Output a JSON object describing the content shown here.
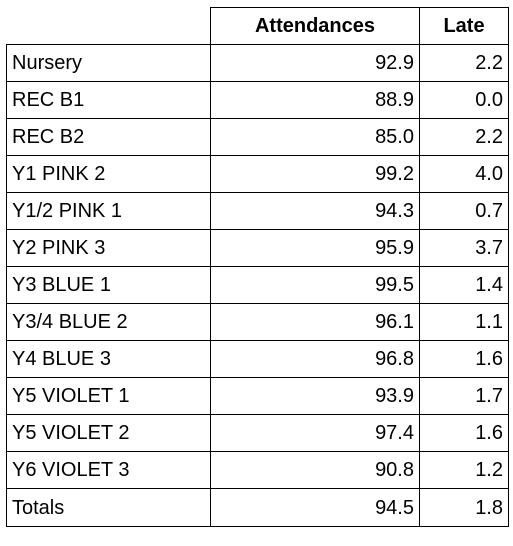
{
  "table": {
    "headers": [
      "",
      "Attendances",
      "Late"
    ],
    "rows": [
      {
        "class": "Nursery",
        "attendances": "92.9",
        "late": "2.2"
      },
      {
        "class": "REC B1",
        "attendances": "88.9",
        "late": "0.0"
      },
      {
        "class": "REC B2",
        "attendances": "85.0",
        "late": "2.2"
      },
      {
        "class": "Y1 PINK 2",
        "attendances": "99.2",
        "late": "4.0"
      },
      {
        "class": "Y1/2 PINK 1",
        "attendances": "94.3",
        "late": "0.7"
      },
      {
        "class": "Y2 PINK 3",
        "attendances": "95.9",
        "late": "3.7"
      },
      {
        "class": "Y3 BLUE 1",
        "attendances": "99.5",
        "late": "1.4"
      },
      {
        "class": "Y3/4 BLUE 2",
        "attendances": "96.1",
        "late": "1.1"
      },
      {
        "class": "Y4 BLUE 3",
        "attendances": "96.8",
        "late": "1.6"
      },
      {
        "class": "Y5 VIOLET 1",
        "attendances": "93.9",
        "late": "1.7"
      },
      {
        "class": "Y5 VIOLET 2",
        "attendances": "97.4",
        "late": "1.6"
      },
      {
        "class": "Y6 VIOLET 3",
        "attendances": "90.8",
        "late": "1.2"
      }
    ],
    "totals": {
      "label": "Totals",
      "attendances": "94.5",
      "late": "1.8"
    }
  },
  "chart_data": {
    "type": "table",
    "columns": [
      "",
      "Attendances",
      "Late"
    ],
    "rows": [
      [
        "Nursery",
        92.9,
        2.2
      ],
      [
        "REC B1",
        88.9,
        0.0
      ],
      [
        "REC B2",
        85.0,
        2.2
      ],
      [
        "Y1 PINK 2",
        99.2,
        4.0
      ],
      [
        "Y1/2 PINK 1",
        94.3,
        0.7
      ],
      [
        "Y2 PINK 3",
        95.9,
        3.7
      ],
      [
        "Y3 BLUE 1",
        99.5,
        1.4
      ],
      [
        "Y3/4 BLUE 2",
        96.1,
        1.1
      ],
      [
        "Y4 BLUE 3",
        96.8,
        1.6
      ],
      [
        "Y5 VIOLET 1",
        93.9,
        1.7
      ],
      [
        "Y5 VIOLET 2",
        97.4,
        1.6
      ],
      [
        "Y6 VIOLET 3",
        90.8,
        1.2
      ],
      [
        "Totals",
        94.5,
        1.8
      ]
    ]
  }
}
